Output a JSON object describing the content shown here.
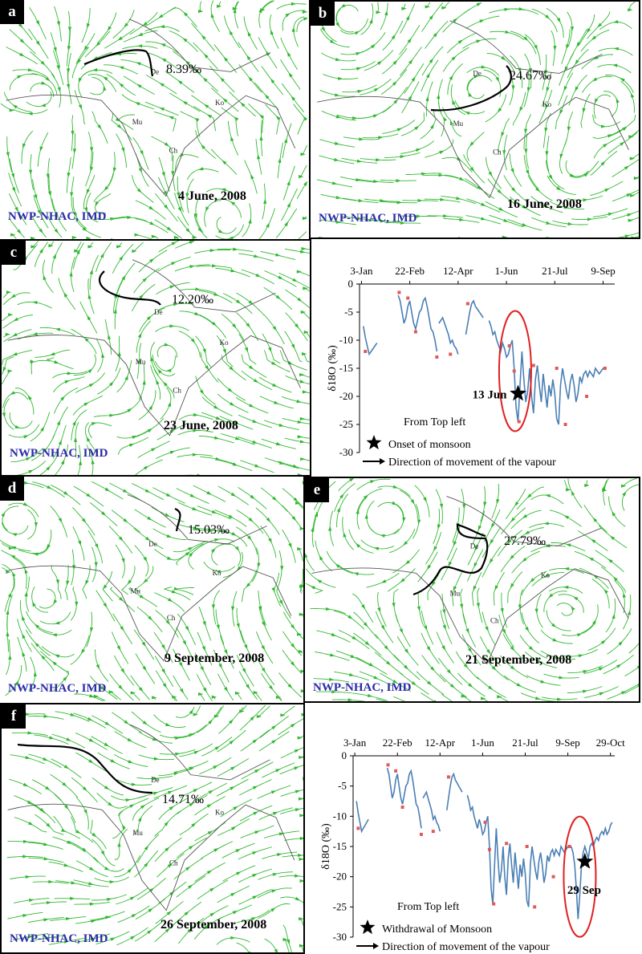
{
  "colors": {
    "streamline": "#33b833",
    "coast": "#555555",
    "track": "#000000",
    "series": "#4a7fb5",
    "marker": "#e05a5a",
    "ellipse": "#e02020",
    "credit": "#2a2aa6"
  },
  "maps": [
    {
      "label": "a",
      "date": "4 June, 2008",
      "value": "8.39‰",
      "credit": "NWP-NHAC, IMD",
      "cities": [
        "De",
        "Ko",
        "Mu",
        "Ch"
      ]
    },
    {
      "label": "b",
      "date": "16 June, 2008",
      "value": "24.67‰",
      "credit": "NWP-NHAC, IMD",
      "cities": [
        "De",
        "Ko",
        "Mu",
        "Ch"
      ]
    },
    {
      "label": "c",
      "date": "23 June, 2008",
      "value": "12.20‰",
      "credit": "NWP-NHAC, IMD",
      "cities": [
        "De",
        "Ko",
        "Mu",
        "Ch"
      ]
    },
    {
      "label": "d",
      "date": "9 September, 2008",
      "value": "15.03‰",
      "credit": "NWP-NHAC, IMD",
      "cities": [
        "De",
        "Ko",
        "Mu",
        "Ch"
      ]
    },
    {
      "label": "e",
      "date": "21 September, 2008",
      "value": "27.79‰",
      "credit": "NWP-NHAC, IMD",
      "cities": [
        "De",
        "Ko",
        "Mu",
        "Ch"
      ]
    },
    {
      "label": "f",
      "date": "26 September, 2008",
      "value": "14.71‰",
      "credit": "NWP-NHAC, IMD",
      "cities": [
        "De",
        "Ko",
        "Mu",
        "Ch"
      ]
    }
  ],
  "chart_data": [
    {
      "type": "line",
      "ylabel": "δ18O (‰)",
      "ylim": [
        -30,
        0
      ],
      "yticks": [
        0,
        -5,
        -10,
        -15,
        -20,
        -25,
        -30
      ],
      "x_tick_labels": [
        "3-Jan",
        "22-Feb",
        "12-Apr",
        "1-Jun",
        "21-Jul",
        "9-Sep"
      ],
      "x_tick_days": [
        3,
        53,
        103,
        153,
        203,
        253
      ],
      "xlim": [
        1,
        265
      ],
      "annotation": "13 Jun",
      "annotation_point": {
        "day": 165,
        "value": -19.5
      },
      "highlight": {
        "day_center": 162,
        "value_center": -15.5
      },
      "legend": {
        "star": "Onset of monsoon",
        "arrow": "Direction of movement of the vapour",
        "note": "From Top left"
      },
      "series": [
        {
          "x": [
            5,
            7,
            9,
            11,
            13,
            15,
            17,
            19
          ],
          "y": [
            -7.5,
            -9.5,
            -11,
            -12.5,
            -12,
            -11.5,
            -11,
            -10.5
          ]
        },
        {
          "x": [
            41,
            43,
            45,
            47,
            49,
            51,
            53,
            55,
            57,
            59,
            61,
            63,
            65,
            67,
            69,
            71,
            73,
            75,
            77,
            79,
            81
          ],
          "y": [
            -2,
            -3,
            -5,
            -7,
            -6,
            -4,
            -3,
            -5,
            -7,
            -8,
            -6.5,
            -5,
            -4.5,
            -3,
            -2.5,
            -4,
            -6,
            -8,
            -8.5,
            -10,
            -12
          ]
        },
        {
          "x": [
            83,
            85,
            87,
            89,
            91,
            93,
            95,
            97,
            99,
            101,
            103
          ],
          "y": [
            -7,
            -6.5,
            -6,
            -7,
            -8,
            -9,
            -10.5,
            -10,
            -11,
            -11.5,
            -12.5
          ]
        },
        {
          "x": [
            111,
            113,
            115,
            117,
            119,
            121,
            123,
            125,
            127,
            129
          ],
          "y": [
            -9,
            -7,
            -5,
            -3.5,
            -3,
            -4,
            -4.5,
            -5,
            -5.5,
            -6
          ]
        },
        {
          "x": [
            135,
            137,
            139,
            141,
            143,
            145,
            147,
            149,
            151,
            153,
            155,
            157,
            159,
            161,
            163,
            165,
            167,
            169,
            171,
            173,
            175,
            177,
            179,
            181,
            183,
            185,
            187,
            189,
            191,
            193,
            195,
            197,
            199,
            201,
            203,
            205,
            207,
            209,
            211,
            213,
            215,
            217,
            219,
            221,
            223,
            225,
            227,
            229,
            231,
            233,
            235,
            237,
            239,
            241,
            243,
            245,
            247,
            249,
            251,
            253,
            255
          ],
          "y": [
            -6.5,
            -7.5,
            -9,
            -8.5,
            -10,
            -11,
            -12,
            -10.5,
            -11.5,
            -13,
            -12.5,
            -11,
            -10,
            -15,
            -22,
            -24.5,
            -18,
            -12,
            -17,
            -21,
            -19,
            -15,
            -20,
            -23,
            -17,
            -14.5,
            -18,
            -21,
            -16,
            -19,
            -22,
            -18,
            -20,
            -17,
            -19.5,
            -24,
            -25,
            -18,
            -15,
            -17,
            -19,
            -20.5,
            -17.5,
            -16,
            -18,
            -21,
            -19.5,
            -16.5,
            -17.5,
            -16,
            -15.5,
            -16.5,
            -15.5,
            -16,
            -16.5,
            -15,
            -15.5,
            -16,
            -15.5,
            -15,
            -15
          ]
        }
      ],
      "markers": {
        "x": [
          7,
          42,
          51,
          59,
          81,
          95,
          113,
          156,
          161,
          166,
          181,
          205,
          214,
          236,
          255
        ],
        "y": [
          -12,
          -1.5,
          -2.5,
          -8.5,
          -13,
          -12.5,
          -3.5,
          -11,
          -15.5,
          -24.5,
          -14.5,
          -15,
          -25,
          -20,
          -15
        ]
      }
    },
    {
      "type": "line",
      "ylabel": "δ18O (‰)",
      "ylim": [
        -30,
        0
      ],
      "yticks": [
        0,
        -5,
        -10,
        -15,
        -20,
        -25,
        -30
      ],
      "x_tick_labels": [
        "3-Jan",
        "22-Feb",
        "12-Apr",
        "1-Jun",
        "21-Jul",
        "9-Sep",
        "29-Oct"
      ],
      "x_tick_days": [
        3,
        53,
        103,
        153,
        203,
        253,
        303
      ],
      "xlim": [
        1,
        308
      ],
      "annotation": "29 Sep",
      "annotation_point": {
        "day": 273,
        "value": -17.5
      },
      "highlight": {
        "day_center": 267,
        "value_center": -20
      },
      "legend": {
        "star": "Withdrawal of Monsoon",
        "arrow": "Direction of movement of the vapour",
        "note": "From Top left"
      },
      "series": [
        {
          "x": [
            5,
            7,
            9,
            11,
            13,
            15,
            17,
            19
          ],
          "y": [
            -7.5,
            -9.5,
            -11,
            -12.5,
            -12,
            -11.5,
            -11,
            -10.5
          ]
        },
        {
          "x": [
            41,
            43,
            45,
            47,
            49,
            51,
            53,
            55,
            57,
            59,
            61,
            63,
            65,
            67,
            69,
            71,
            73,
            75,
            77,
            79,
            81
          ],
          "y": [
            -2,
            -3,
            -5,
            -7,
            -6,
            -4,
            -3,
            -5,
            -7,
            -8,
            -6.5,
            -5,
            -4.5,
            -3,
            -2.5,
            -4,
            -6,
            -8,
            -8.5,
            -10,
            -12
          ]
        },
        {
          "x": [
            83,
            85,
            87,
            89,
            91,
            93,
            95,
            97,
            99,
            101,
            103
          ],
          "y": [
            -7,
            -6.5,
            -6,
            -7,
            -8,
            -9,
            -10.5,
            -10,
            -11,
            -11.5,
            -12.5
          ]
        },
        {
          "x": [
            111,
            113,
            115,
            117,
            119,
            121,
            123,
            125,
            127,
            129
          ],
          "y": [
            -9,
            -7,
            -5,
            -3.5,
            -3,
            -4,
            -4.5,
            -5,
            -5.5,
            -6
          ]
        },
        {
          "x": [
            135,
            137,
            139,
            141,
            143,
            145,
            147,
            149,
            151,
            153,
            155,
            157,
            159,
            161,
            163,
            165,
            167,
            169,
            171,
            173,
            175,
            177,
            179,
            181,
            183,
            185,
            187,
            189,
            191,
            193,
            195,
            197,
            199,
            201,
            203,
            205,
            207,
            209,
            211,
            213,
            215,
            217,
            219,
            221,
            223,
            225,
            227,
            229,
            231,
            233,
            235,
            237,
            239,
            241,
            243,
            245,
            247,
            249,
            251,
            253,
            255
          ],
          "y": [
            -6.5,
            -7.5,
            -9,
            -8.5,
            -10,
            -11,
            -12,
            -10.5,
            -11.5,
            -13,
            -12.5,
            -11,
            -10,
            -15,
            -22,
            -24.5,
            -18,
            -12,
            -17,
            -21,
            -19,
            -15,
            -20,
            -23,
            -17,
            -14.5,
            -18,
            -21,
            -16,
            -19,
            -22,
            -18,
            -20,
            -17,
            -19.5,
            -24,
            -25,
            -18,
            -15,
            -17,
            -19,
            -20.5,
            -17.5,
            -16,
            -18,
            -21,
            -19.5,
            -16.5,
            -17.5,
            -16,
            -15.5,
            -16.5,
            -15.5,
            -16,
            -16.5,
            -15,
            -15.5,
            -16,
            -15.5,
            -15,
            -15
          ]
        },
        {
          "x": [
            257,
            259,
            261,
            263,
            265,
            267,
            269,
            271,
            273,
            275,
            277,
            279,
            281,
            283,
            285,
            287,
            289,
            291,
            293,
            295,
            297,
            299,
            301,
            303,
            305
          ],
          "y": [
            -15,
            -16,
            -18,
            -22,
            -27,
            -23,
            -18,
            -16,
            -15,
            -16,
            -17,
            -15,
            -14.5,
            -15,
            -14,
            -13.5,
            -14,
            -13,
            -12.5,
            -13,
            -12,
            -13,
            -12.5,
            -11.5,
            -11
          ]
        }
      ],
      "markers": {
        "x": [
          7,
          42,
          51,
          59,
          81,
          95,
          113,
          156,
          161,
          166,
          181,
          205,
          214,
          236,
          255
        ],
        "y": [
          -12,
          -1.5,
          -2.5,
          -8.5,
          -13,
          -12.5,
          -3.5,
          -11,
          -15.5,
          -24.5,
          -14.5,
          -15,
          -25,
          -20,
          -15
        ]
      }
    }
  ]
}
